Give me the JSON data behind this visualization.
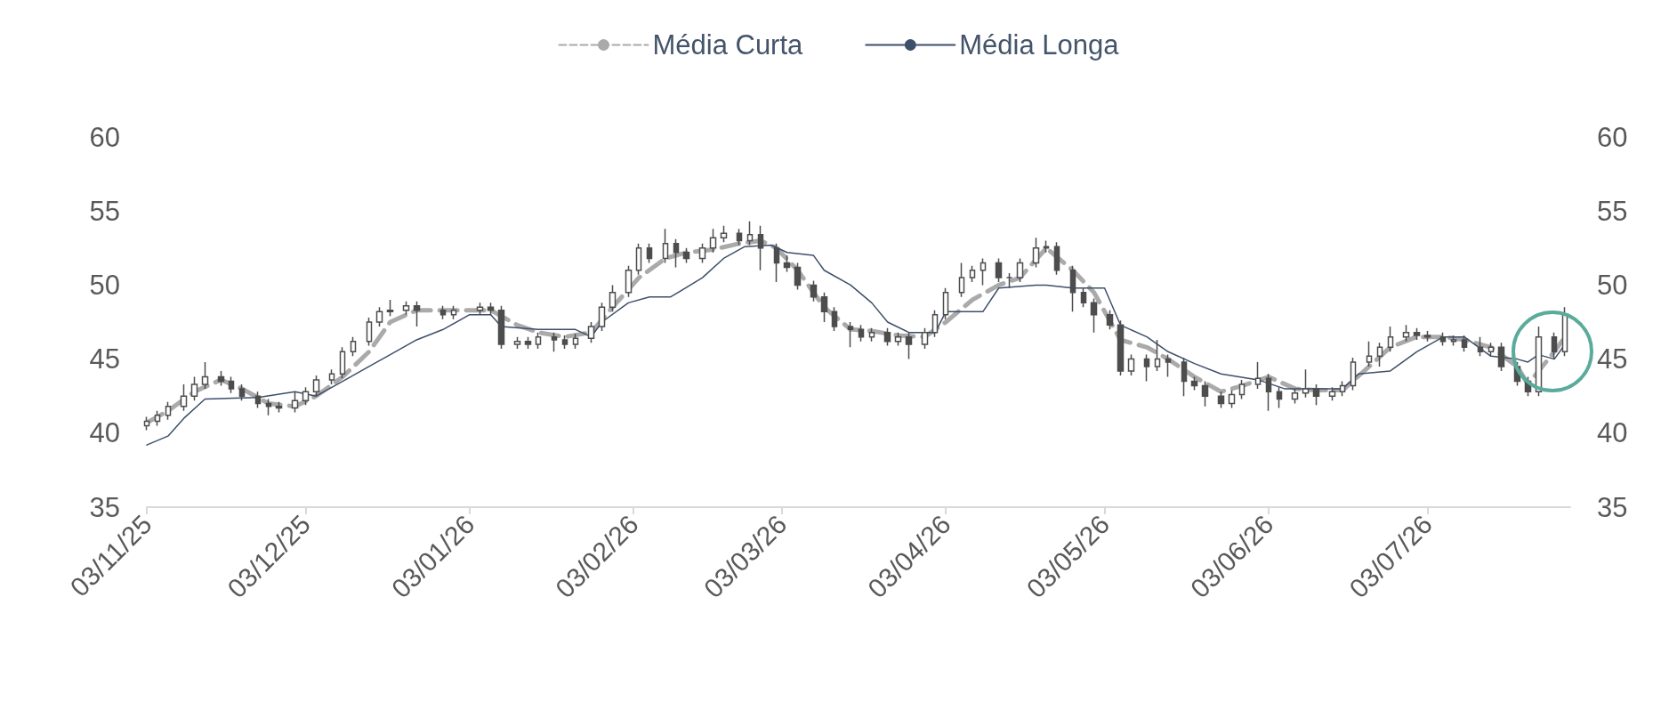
{
  "chart_data": {
    "type": "candlestick",
    "color": "#4d4d4d",
    "legend": "top",
    "marker": "none",
    "x": [
      "2025-11-03",
      "2025-11-05",
      "2025-11-07",
      "2025-11-10",
      "2025-11-12",
      "2025-11-14",
      "2025-11-17",
      "2025-11-19",
      "2025-11-21",
      "2025-11-24",
      "2025-11-26",
      "2025-11-28",
      "2025-12-01",
      "2025-12-03",
      "2025-12-05",
      "2025-12-08",
      "2025-12-10",
      "2025-12-12",
      "2025-12-15",
      "2025-12-17",
      "2025-12-19",
      "2025-12-22",
      "2025-12-24",
      "2025-12-29",
      "2025-12-31",
      "2026-01-05",
      "2026-01-07",
      "2026-01-09",
      "2026-01-12",
      "2026-01-14",
      "2026-01-16",
      "2026-01-19",
      "2026-01-21",
      "2026-01-23",
      "2026-01-26",
      "2026-01-28",
      "2026-01-30",
      "2026-02-02",
      "2026-02-04",
      "2026-02-06",
      "2026-02-09",
      "2026-02-11",
      "2026-02-13",
      "2026-02-16",
      "2026-02-18",
      "2026-02-20",
      "2026-02-23",
      "2026-02-25",
      "2026-02-27",
      "2026-03-02",
      "2026-03-04",
      "2026-03-06",
      "2026-03-09",
      "2026-03-11",
      "2026-03-13",
      "2026-03-16",
      "2026-03-18",
      "2026-03-20",
      "2026-03-23",
      "2026-03-25",
      "2026-03-27",
      "2026-03-30",
      "2026-04-01",
      "2026-04-03",
      "2026-04-06",
      "2026-04-08",
      "2026-04-10",
      "2026-04-13",
      "2026-04-15",
      "2026-04-17",
      "2026-04-20",
      "2026-04-22",
      "2026-04-24",
      "2026-04-27",
      "2026-04-29",
      "2026-05-01",
      "2026-05-04",
      "2026-05-06",
      "2026-05-08",
      "2026-05-11",
      "2026-05-13",
      "2026-05-15",
      "2026-05-18",
      "2026-05-20",
      "2026-05-22",
      "2026-05-25",
      "2026-05-27",
      "2026-05-29",
      "2026-06-01",
      "2026-06-03",
      "2026-06-05",
      "2026-06-08",
      "2026-06-10",
      "2026-06-12",
      "2026-06-15",
      "2026-06-17",
      "2026-06-19",
      "2026-06-22",
      "2026-06-24",
      "2026-06-26",
      "2026-06-29",
      "2026-07-01",
      "2026-07-03",
      "2026-07-06",
      "2026-07-08",
      "2026-07-10",
      "2026-07-13",
      "2026-07-15",
      "2026-07-17",
      "2026-07-20",
      "2026-07-22",
      "2026-07-24",
      "2026-07-27",
      "2026-07-29"
    ],
    "ohlc": [
      [
        40.5,
        41.1,
        40.2,
        40.8
      ],
      [
        40.8,
        41.5,
        40.5,
        41.2
      ],
      [
        41.2,
        42.1,
        40.9,
        41.8
      ],
      [
        41.8,
        43.3,
        41.5,
        42.5
      ],
      [
        42.5,
        43.8,
        42.2,
        43.3
      ],
      [
        43.3,
        44.8,
        43.0,
        43.8
      ],
      [
        43.8,
        44.2,
        43.2,
        43.5
      ],
      [
        43.5,
        43.8,
        42.7,
        43.0
      ],
      [
        43.0,
        43.3,
        42.2,
        42.5
      ],
      [
        42.5,
        42.8,
        41.7,
        42.0
      ],
      [
        42.0,
        42.3,
        41.2,
        41.8
      ],
      [
        41.8,
        42.1,
        41.4,
        41.7
      ],
      [
        41.7,
        42.8,
        41.4,
        42.2
      ],
      [
        42.2,
        43.1,
        41.9,
        42.8
      ],
      [
        42.8,
        43.9,
        42.5,
        43.6
      ],
      [
        43.6,
        44.3,
        43.3,
        44.0
      ],
      [
        44.0,
        45.8,
        43.7,
        45.5
      ],
      [
        45.5,
        46.5,
        45.2,
        46.2
      ],
      [
        46.2,
        47.8,
        45.9,
        47.5
      ],
      [
        47.5,
        48.5,
        47.2,
        48.2
      ],
      [
        48.2,
        49.0,
        47.9,
        48.3
      ],
      [
        48.3,
        48.9,
        48.0,
        48.6
      ],
      [
        48.6,
        48.9,
        47.2,
        48.3
      ],
      [
        48.3,
        48.6,
        47.7,
        48.0
      ],
      [
        48.0,
        48.6,
        47.7,
        48.3
      ],
      [
        48.3,
        48.8,
        48.0,
        48.5
      ],
      [
        48.5,
        48.8,
        48.0,
        48.3
      ],
      [
        48.3,
        48.6,
        45.7,
        46.0
      ],
      [
        46.0,
        46.5,
        45.7,
        46.2
      ],
      [
        46.2,
        46.5,
        45.7,
        46.0
      ],
      [
        46.0,
        46.8,
        45.7,
        46.5
      ],
      [
        46.5,
        46.8,
        45.5,
        46.3
      ],
      [
        46.3,
        46.6,
        45.7,
        46.0
      ],
      [
        46.0,
        46.7,
        45.7,
        46.4
      ],
      [
        46.4,
        47.5,
        46.1,
        47.2
      ],
      [
        47.2,
        48.8,
        46.9,
        48.5
      ],
      [
        48.5,
        50.0,
        48.2,
        49.5
      ],
      [
        49.5,
        51.3,
        49.2,
        51.0
      ],
      [
        51.0,
        52.8,
        50.7,
        52.5
      ],
      [
        52.5,
        52.8,
        51.5,
        51.8
      ],
      [
        51.8,
        53.8,
        51.5,
        52.8
      ],
      [
        52.8,
        53.1,
        51.2,
        52.2
      ],
      [
        52.2,
        52.5,
        51.5,
        51.8
      ],
      [
        51.8,
        52.8,
        51.5,
        52.5
      ],
      [
        52.5,
        53.8,
        52.2,
        53.2
      ],
      [
        53.2,
        54.0,
        52.9,
        53.5
      ],
      [
        53.5,
        53.8,
        52.7,
        53.0
      ],
      [
        53.0,
        54.3,
        52.7,
        53.4
      ],
      [
        53.4,
        54.0,
        51.0,
        52.5
      ],
      [
        52.5,
        52.8,
        50.2,
        51.5
      ],
      [
        51.5,
        52.0,
        50.9,
        51.2
      ],
      [
        51.2,
        51.5,
        49.7,
        50.0
      ],
      [
        50.0,
        50.3,
        48.9,
        49.2
      ],
      [
        49.2,
        49.5,
        47.5,
        48.2
      ],
      [
        48.2,
        48.5,
        46.9,
        47.2
      ],
      [
        47.2,
        47.5,
        45.8,
        47.0
      ],
      [
        47.0,
        47.3,
        46.2,
        46.5
      ],
      [
        46.5,
        47.1,
        46.2,
        46.8
      ],
      [
        46.8,
        47.1,
        45.9,
        46.2
      ],
      [
        46.2,
        46.8,
        45.9,
        46.5
      ],
      [
        46.5,
        46.8,
        45.0,
        46.0
      ],
      [
        46.0,
        47.1,
        45.7,
        46.8
      ],
      [
        46.8,
        48.3,
        46.5,
        48.0
      ],
      [
        48.0,
        49.8,
        47.7,
        49.5
      ],
      [
        49.5,
        51.5,
        49.2,
        50.5
      ],
      [
        50.5,
        51.3,
        50.2,
        51.0
      ],
      [
        51.0,
        51.8,
        50.0,
        51.5
      ],
      [
        51.5,
        51.8,
        50.2,
        50.5
      ],
      [
        50.5,
        50.8,
        49.8,
        50.5
      ],
      [
        50.5,
        51.8,
        50.2,
        51.5
      ],
      [
        51.5,
        53.2,
        51.2,
        52.5
      ],
      [
        52.5,
        53.0,
        52.2,
        52.6
      ],
      [
        52.6,
        52.9,
        50.7,
        51.0
      ],
      [
        51.0,
        51.3,
        48.2,
        49.5
      ],
      [
        49.5,
        49.8,
        48.5,
        48.8
      ],
      [
        48.8,
        49.1,
        46.8,
        48.0
      ],
      [
        48.0,
        48.3,
        47.0,
        47.3
      ],
      [
        47.3,
        47.6,
        43.9,
        44.2
      ],
      [
        44.2,
        45.3,
        43.9,
        45.0
      ],
      [
        45.0,
        45.3,
        43.5,
        44.5
      ],
      [
        44.5,
        46.3,
        44.2,
        45.0
      ],
      [
        45.0,
        45.3,
        43.8,
        44.8
      ],
      [
        44.8,
        45.1,
        42.5,
        43.5
      ],
      [
        43.5,
        43.8,
        42.9,
        43.2
      ],
      [
        43.2,
        43.5,
        41.8,
        42.5
      ],
      [
        42.5,
        42.8,
        41.7,
        42.0
      ],
      [
        42.0,
        42.9,
        41.7,
        42.6
      ],
      [
        42.6,
        43.6,
        42.3,
        43.3
      ],
      [
        43.3,
        44.8,
        43.0,
        43.7
      ],
      [
        43.7,
        44.0,
        41.5,
        42.8
      ],
      [
        42.8,
        43.1,
        41.7,
        42.3
      ],
      [
        42.3,
        43.0,
        42.0,
        42.7
      ],
      [
        42.7,
        44.3,
        42.4,
        43.0
      ],
      [
        43.0,
        43.3,
        41.9,
        42.5
      ],
      [
        42.5,
        43.1,
        42.2,
        42.8
      ],
      [
        42.8,
        43.5,
        42.5,
        43.2
      ],
      [
        43.2,
        45.1,
        42.9,
        44.8
      ],
      [
        44.8,
        46.2,
        44.5,
        45.2
      ],
      [
        45.2,
        46.1,
        44.5,
        45.8
      ],
      [
        45.8,
        47.2,
        45.5,
        46.5
      ],
      [
        46.5,
        47.3,
        46.2,
        46.8
      ],
      [
        46.8,
        47.1,
        46.3,
        46.6
      ],
      [
        46.6,
        46.9,
        46.2,
        46.5
      ],
      [
        46.5,
        46.8,
        45.9,
        46.2
      ],
      [
        46.2,
        46.6,
        45.9,
        46.3
      ],
      [
        46.3,
        46.6,
        45.5,
        45.8
      ],
      [
        45.8,
        46.5,
        45.2,
        45.5
      ],
      [
        45.5,
        46.1,
        45.2,
        45.8
      ],
      [
        45.8,
        46.1,
        44.2,
        44.5
      ],
      [
        44.5,
        44.8,
        43.2,
        43.5
      ],
      [
        43.5,
        43.8,
        42.5,
        42.8
      ],
      [
        42.8,
        47.2,
        42.5,
        46.5
      ],
      [
        46.5,
        46.8,
        45.0,
        45.5
      ],
      [
        45.5,
        48.5,
        45.2,
        48.0
      ]
    ],
    "series": [
      {
        "name": "Média Curta",
        "type": "line",
        "color": "#aaaaaa",
        "line_style": "dashed",
        "x": [
          "2025-11-03",
          "2025-11-07",
          "2025-11-12",
          "2025-11-17",
          "2025-11-21",
          "2025-11-26",
          "2025-12-01",
          "2025-12-05",
          "2025-12-10",
          "2025-12-15",
          "2025-12-19",
          "2025-12-24",
          "2025-12-31",
          "2026-01-07",
          "2026-01-12",
          "2026-01-16",
          "2026-01-21",
          "2026-01-26",
          "2026-01-30",
          "2026-02-04",
          "2026-02-09",
          "2026-02-13",
          "2026-02-18",
          "2026-02-23",
          "2026-02-27",
          "2026-03-02",
          "2026-03-06",
          "2026-03-11",
          "2026-03-16",
          "2026-03-20",
          "2026-03-25",
          "2026-03-30",
          "2026-04-03",
          "2026-04-08",
          "2026-04-13",
          "2026-04-17",
          "2026-04-22",
          "2026-04-27",
          "2026-05-01",
          "2026-05-06",
          "2026-05-11",
          "2026-05-15",
          "2026-05-20",
          "2026-05-25",
          "2026-05-29",
          "2026-06-03",
          "2026-06-08",
          "2026-06-12",
          "2026-06-17",
          "2026-06-22",
          "2026-06-26",
          "2026-07-01",
          "2026-07-06",
          "2026-07-10",
          "2026-07-15",
          "2026-07-20",
          "2026-07-22",
          "2026-07-27",
          "2026-07-29"
        ],
        "values": [
          40.7,
          41.5,
          42.8,
          43.6,
          43.0,
          42.0,
          41.8,
          42.5,
          43.8,
          45.5,
          47.5,
          48.3,
          48.3,
          48.3,
          47.3,
          46.8,
          46.5,
          46.8,
          48.5,
          50.5,
          51.8,
          52.2,
          52.4,
          52.8,
          53.0,
          52.5,
          51.0,
          48.5,
          47.0,
          46.9,
          46.6,
          46.5,
          47.5,
          49.0,
          50.0,
          50.5,
          52.5,
          51.0,
          49.5,
          46.3,
          45.8,
          45.0,
          43.8,
          42.8,
          43.2,
          43.8,
          43.0,
          42.9,
          42.9,
          44.5,
          45.8,
          46.5,
          46.5,
          46.3,
          45.8,
          44.5,
          43.3,
          45.5,
          46.5
        ]
      },
      {
        "name": "Média Longa",
        "type": "line",
        "color": "#3d4f6b",
        "line_style": "solid",
        "x": [
          "2025-11-03",
          "2025-11-07",
          "2025-11-10",
          "2025-11-14",
          "2025-11-24",
          "2025-12-01",
          "2025-12-05",
          "2025-12-10",
          "2025-12-15",
          "2025-12-19",
          "2025-12-24",
          "2025-12-29",
          "2026-01-03",
          "2026-01-07",
          "2026-01-09",
          "2026-01-16",
          "2026-01-23",
          "2026-01-26",
          "2026-01-28",
          "2026-02-02",
          "2026-02-06",
          "2026-02-10",
          "2026-02-16",
          "2026-02-20",
          "2026-02-24",
          "2026-03-01",
          "2026-03-04",
          "2026-03-09",
          "2026-03-11",
          "2026-03-16",
          "2026-03-20",
          "2026-03-23",
          "2026-03-27",
          "2026-04-01",
          "2026-04-03",
          "2026-04-10",
          "2026-04-13",
          "2026-04-20",
          "2026-04-22",
          "2026-04-27",
          "2026-05-01",
          "2026-05-03",
          "2026-05-06",
          "2026-05-11",
          "2026-05-15",
          "2026-05-20",
          "2026-05-25",
          "2026-06-01",
          "2026-06-06",
          "2026-06-12",
          "2026-06-17",
          "2026-06-20",
          "2026-06-26",
          "2026-07-01",
          "2026-07-06",
          "2026-07-10",
          "2026-07-15",
          "2026-07-20",
          "2026-07-22",
          "2026-07-24",
          "2026-07-27",
          "2026-07-29"
        ],
        "values": [
          39.2,
          39.8,
          41.0,
          42.3,
          42.4,
          42.8,
          42.5,
          43.5,
          44.5,
          45.3,
          46.3,
          47.0,
          48.0,
          48.0,
          47.2,
          47.0,
          47.0,
          46.5,
          47.5,
          48.8,
          49.2,
          49.2,
          50.5,
          51.8,
          52.6,
          52.7,
          52.2,
          52.0,
          51.0,
          50.0,
          48.8,
          47.5,
          46.8,
          46.8,
          48.2,
          48.2,
          49.8,
          50.0,
          50.0,
          49.8,
          49.8,
          49.8,
          47.3,
          46.5,
          45.5,
          44.7,
          44.0,
          43.6,
          43.0,
          43.0,
          43.0,
          44.0,
          44.2,
          45.5,
          46.5,
          46.5,
          45.2,
          45.0,
          44.8,
          45.3,
          45.0,
          46.0
        ]
      }
    ],
    "xlim": [
      "2025-11-03",
      "2026-07-30"
    ],
    "xticks": [
      {
        "value": "2025-11-03",
        "label": "03/11/25"
      },
      {
        "value": "2025-12-03",
        "label": "03/12/25"
      },
      {
        "value": "2026-01-03",
        "label": "03/01/26"
      },
      {
        "value": "2026-02-03",
        "label": "03/02/26"
      },
      {
        "value": "2026-03-03",
        "label": "03/03/26"
      },
      {
        "value": "2026-04-03",
        "label": "03/04/26"
      },
      {
        "value": "2026-05-03",
        "label": "03/05/26"
      },
      {
        "value": "2026-06-03",
        "label": "03/06/26"
      },
      {
        "value": "2026-07-03",
        "label": "03/07/26"
      }
    ],
    "ylim": [
      35,
      60
    ],
    "yticks": [
      35,
      40,
      45,
      50,
      55,
      60
    ],
    "y2lim": [
      35,
      60
    ],
    "y2ticks": [
      35,
      40,
      45,
      50,
      55,
      60
    ]
  }
}
